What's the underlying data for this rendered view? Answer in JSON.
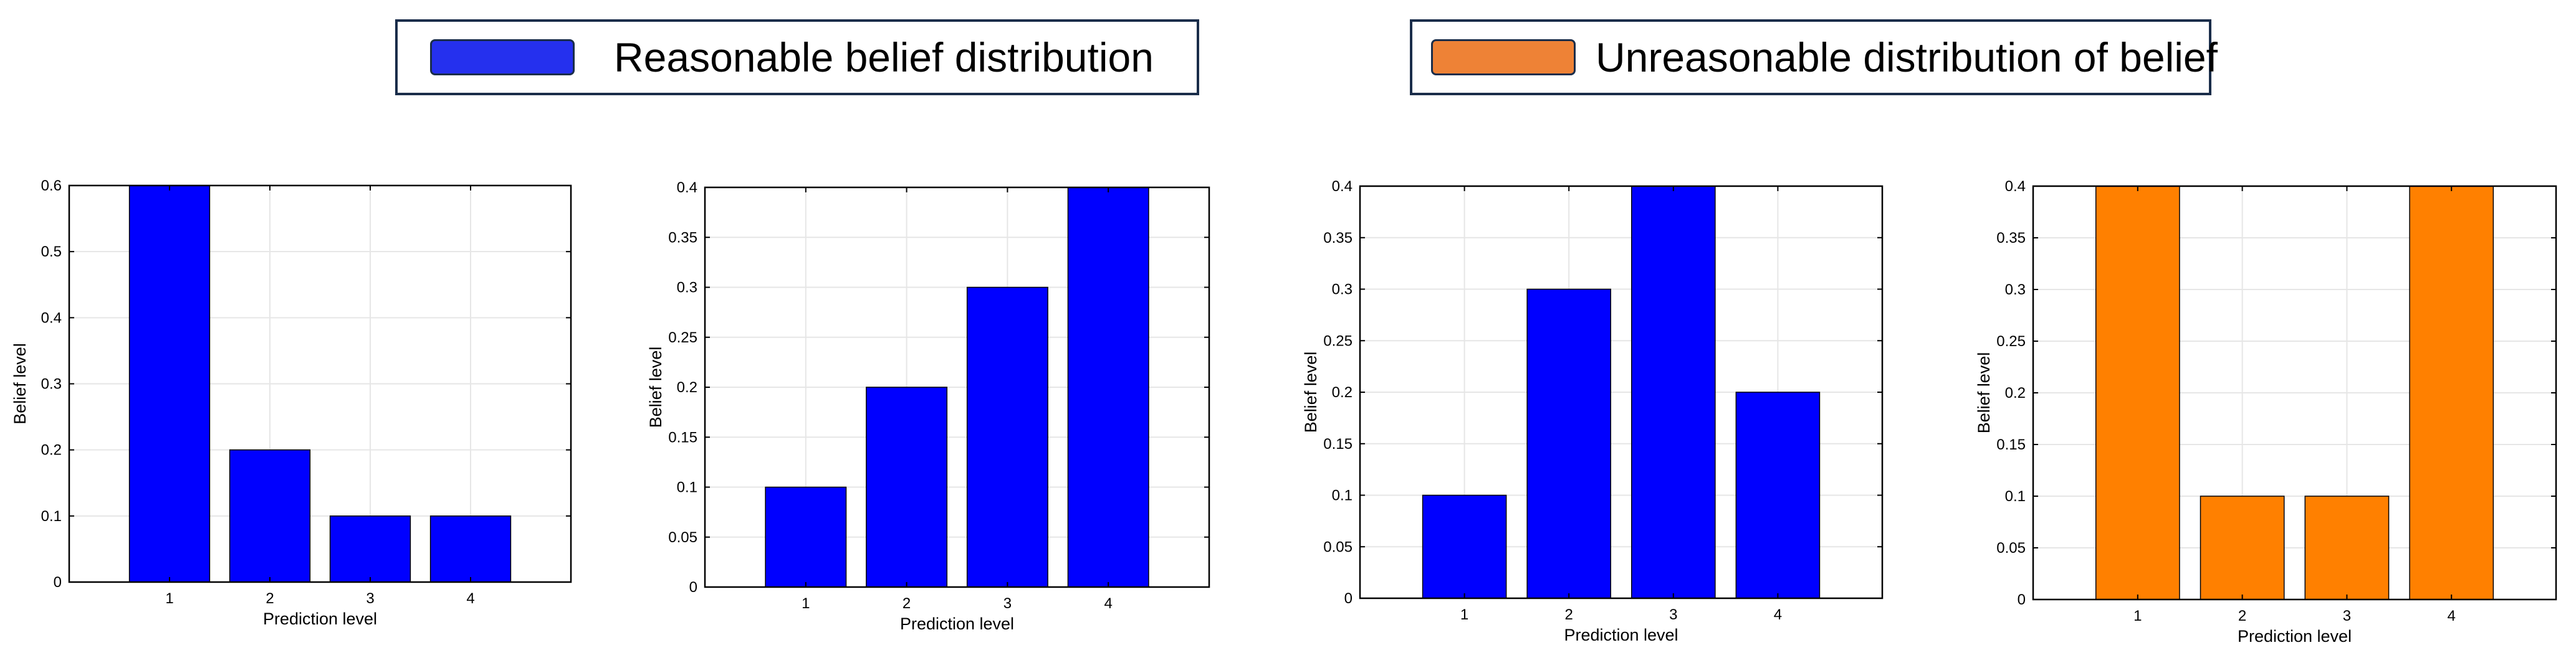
{
  "legend": [
    {
      "label": "Reasonable belief distribution",
      "color": "#2530ee"
    },
    {
      "label": "Unreasonable distribution of belief",
      "color": "#ee8236"
    }
  ],
  "chart_data": [
    {
      "type": "bar",
      "categories": [
        "1",
        "2",
        "3",
        "4"
      ],
      "values": [
        0.6,
        0.2,
        0.1,
        0.1
      ],
      "ylim": [
        0,
        0.6
      ],
      "yticks": [
        "0",
        "0.1",
        "0.2",
        "0.3",
        "0.4",
        "0.5",
        "0.6"
      ],
      "xlabel": "Prediction level",
      "ylabel": "Belief level",
      "color": "#0000ff",
      "grid": true
    },
    {
      "type": "bar",
      "categories": [
        "1",
        "2",
        "3",
        "4"
      ],
      "values": [
        0.1,
        0.2,
        0.3,
        0.4
      ],
      "ylim": [
        0,
        0.4
      ],
      "yticks": [
        "0",
        "0.05",
        "0.1",
        "0.15",
        "0.2",
        "0.25",
        "0.3",
        "0.35",
        "0.4"
      ],
      "xlabel": "Prediction level",
      "ylabel": "Belief level",
      "color": "#0000ff",
      "grid": true
    },
    {
      "type": "bar",
      "categories": [
        "1",
        "2",
        "3",
        "4"
      ],
      "values": [
        0.1,
        0.3,
        0.4,
        0.2
      ],
      "ylim": [
        0,
        0.4
      ],
      "yticks": [
        "0",
        "0.05",
        "0.1",
        "0.15",
        "0.2",
        "0.25",
        "0.3",
        "0.35",
        "0.4"
      ],
      "xlabel": "Prediction level",
      "ylabel": "Belief level",
      "color": "#0000ff",
      "grid": true
    },
    {
      "type": "bar",
      "categories": [
        "1",
        "2",
        "3",
        "4"
      ],
      "values": [
        0.4,
        0.1,
        0.1,
        0.4
      ],
      "ylim": [
        0,
        0.4
      ],
      "yticks": [
        "0",
        "0.05",
        "0.1",
        "0.15",
        "0.2",
        "0.25",
        "0.3",
        "0.35",
        "0.4"
      ],
      "xlabel": "Prediction level",
      "ylabel": "Belief level",
      "color": "#ff8000",
      "grid": true
    }
  ]
}
